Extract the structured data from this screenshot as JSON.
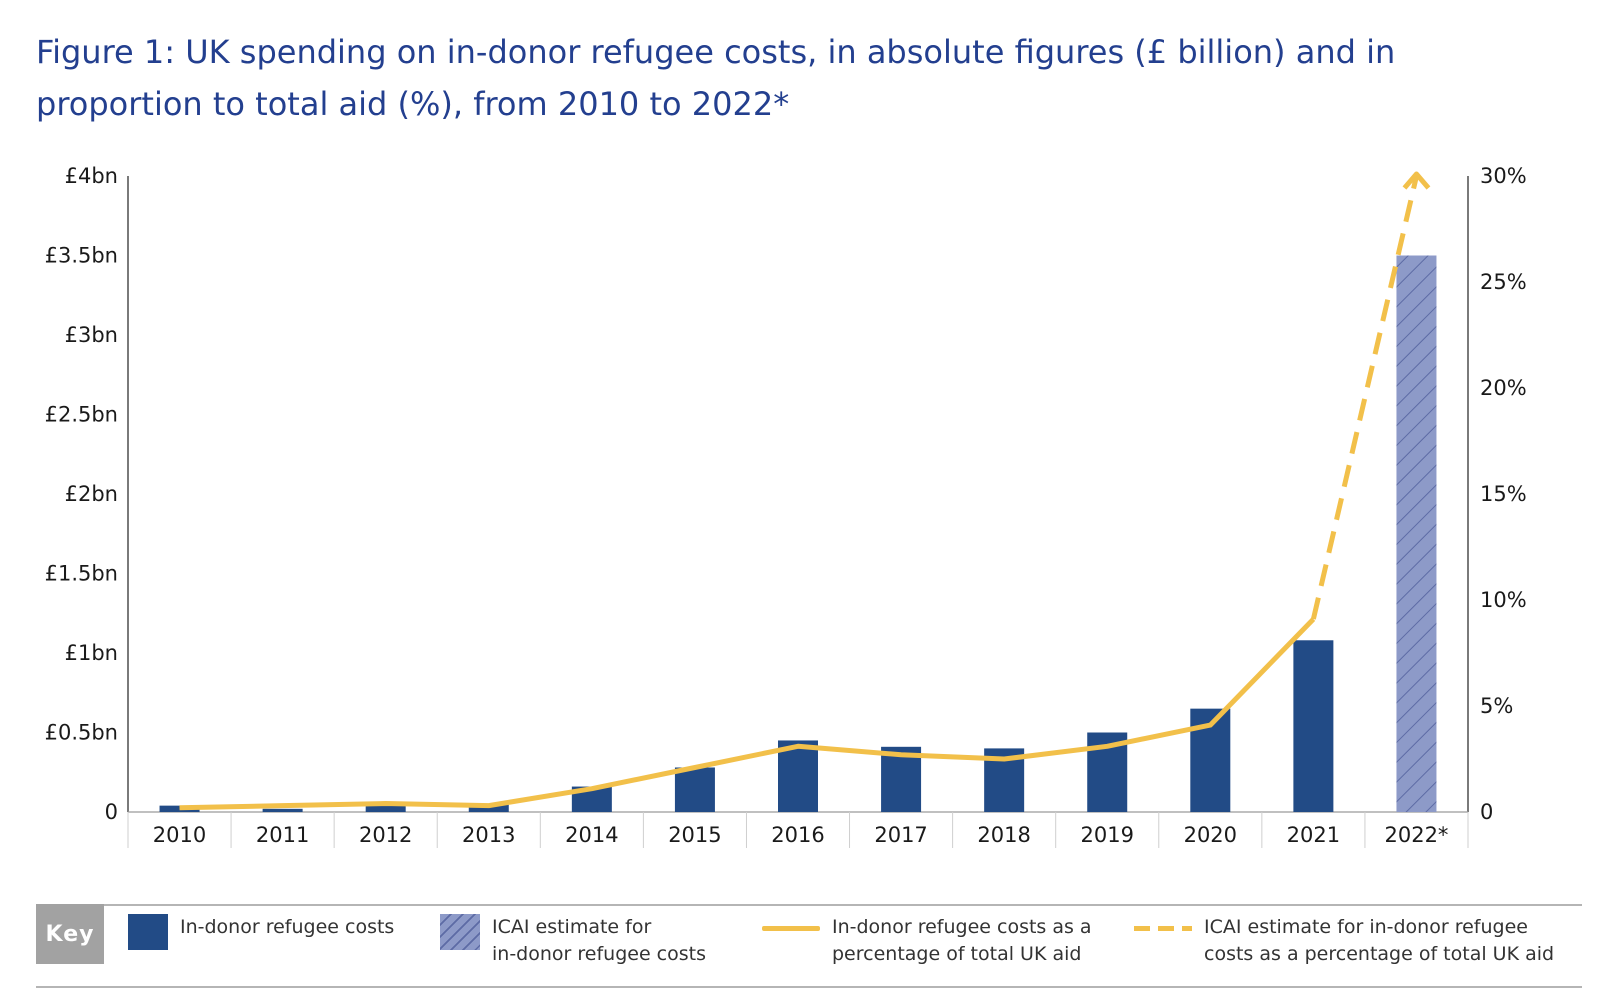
{
  "title": "Figure 1: UK spending on in-donor refugee costs, in absolute figures (£ billion) and in proportion to total aid (%), from 2010 to 2022*",
  "colors": {
    "bar": "#224b86",
    "bar_estimate": "#8d9ac8",
    "bar_estimate_hatch": "#5d6ba5",
    "line": "#f2c04a",
    "title": "#233f8f",
    "key_badge": "#a2a2a2"
  },
  "key": {
    "label": "Key",
    "items": [
      {
        "text": "In-donor refugee costs",
        "swatch": "solid-bar"
      },
      {
        "text": "ICAI estimate for\nin-donor refugee costs",
        "swatch": "hatched-bar"
      },
      {
        "text": "In-donor refugee costs as a\npercentage of total UK aid",
        "swatch": "solid-line"
      },
      {
        "text": "ICAI estimate for in-donor refugee\ncosts as a percentage of total UK aid",
        "swatch": "dashed-line"
      }
    ]
  },
  "chart_data": {
    "type": "bar",
    "categories": [
      "2010",
      "2011",
      "2012",
      "2013",
      "2014",
      "2015",
      "2016",
      "2017",
      "2018",
      "2019",
      "2020",
      "2021",
      "2022*"
    ],
    "ylim": [
      0,
      4
    ],
    "y_ticks": [
      "0",
      "£0.5bn",
      "£1bn",
      "£1.5bn",
      "£2bn",
      "£2.5bn",
      "£3bn",
      "£3.5bn",
      "£4bn"
    ],
    "y2lim": [
      0,
      30
    ],
    "y2_ticks": [
      "0",
      "5%",
      "10%",
      "15%",
      "20%",
      "25%",
      "30%"
    ],
    "grid": false,
    "legend_position": "bottom",
    "series": [
      {
        "name": "In-donor refugee costs",
        "type": "bar",
        "axis": "left",
        "values": [
          0.04,
          0.02,
          0.04,
          0.05,
          0.16,
          0.28,
          0.45,
          0.41,
          0.4,
          0.5,
          0.65,
          1.08,
          null
        ]
      },
      {
        "name": "ICAI estimate for in-donor refugee costs",
        "type": "bar",
        "axis": "left",
        "values": [
          null,
          null,
          null,
          null,
          null,
          null,
          null,
          null,
          null,
          null,
          null,
          null,
          3.5
        ]
      },
      {
        "name": "In-donor refugee costs as a percentage of total UK aid",
        "type": "line",
        "axis": "right",
        "values": [
          0.2,
          0.3,
          0.4,
          0.3,
          1.1,
          2.1,
          3.1,
          2.7,
          2.5,
          3.1,
          4.1,
          9.1,
          null
        ]
      },
      {
        "name": "ICAI estimate for in-donor refugee costs as a percentage of total UK aid",
        "type": "line",
        "axis": "right",
        "style": "dashed",
        "values": [
          null,
          null,
          null,
          null,
          null,
          null,
          null,
          null,
          null,
          null,
          null,
          9.1,
          30.0
        ]
      }
    ]
  }
}
